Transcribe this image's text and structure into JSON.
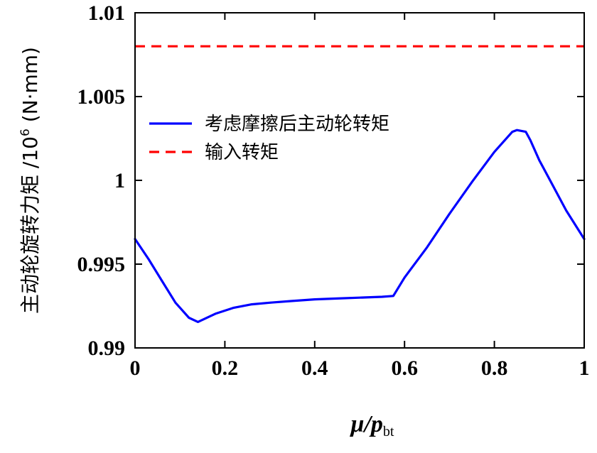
{
  "chart_data": {
    "type": "line",
    "xlabel": {
      "main": "μ/p",
      "sub": "bt"
    },
    "ylabel": {
      "prefix": "主动轮旋转力矩 /10",
      "sup": "6",
      "suffix": " (N·mm)"
    },
    "xlim": [
      0,
      1
    ],
    "ylim": [
      0.99,
      1.01
    ],
    "xticks": [
      {
        "value": 0,
        "label": "0"
      },
      {
        "value": 0.2,
        "label": "0.2"
      },
      {
        "value": 0.4,
        "label": "0.4"
      },
      {
        "value": 0.6,
        "label": "0.6"
      },
      {
        "value": 0.8,
        "label": "0.8"
      },
      {
        "value": 1,
        "label": "1"
      }
    ],
    "yticks": [
      {
        "value": 0.99,
        "label": "0.99"
      },
      {
        "value": 0.995,
        "label": "0.995"
      },
      {
        "value": 1.0,
        "label": "1"
      },
      {
        "value": 1.005,
        "label": "1.005"
      },
      {
        "value": 1.01,
        "label": "1.01"
      }
    ],
    "grid": false,
    "legend_position": "upper-left",
    "series": [
      {
        "name": "考虑摩擦后主动轮转矩",
        "color": "#0000ff",
        "style": "solid",
        "x": [
          0,
          0.03,
          0.06,
          0.09,
          0.12,
          0.14,
          0.18,
          0.22,
          0.26,
          0.3,
          0.35,
          0.4,
          0.45,
          0.5,
          0.55,
          0.575,
          0.6,
          0.65,
          0.7,
          0.75,
          0.8,
          0.84,
          0.85,
          0.87,
          0.88,
          0.9,
          0.93,
          0.96,
          1.0
        ],
        "y": [
          0.9965,
          0.9953,
          0.994,
          0.9927,
          0.9918,
          0.99155,
          0.99205,
          0.9924,
          0.9926,
          0.9927,
          0.9928,
          0.9929,
          0.99295,
          0.993,
          0.99305,
          0.9931,
          0.9942,
          0.996,
          0.998,
          0.9999,
          1.0017,
          1.0029,
          1.003,
          1.0029,
          1.0024,
          1.0012,
          0.9997,
          0.9982,
          0.9965
        ]
      },
      {
        "name": "输入转矩",
        "color": "#ff0000",
        "style": "dashed",
        "x": [
          0,
          1
        ],
        "y": [
          1.008,
          1.008
        ]
      }
    ]
  }
}
